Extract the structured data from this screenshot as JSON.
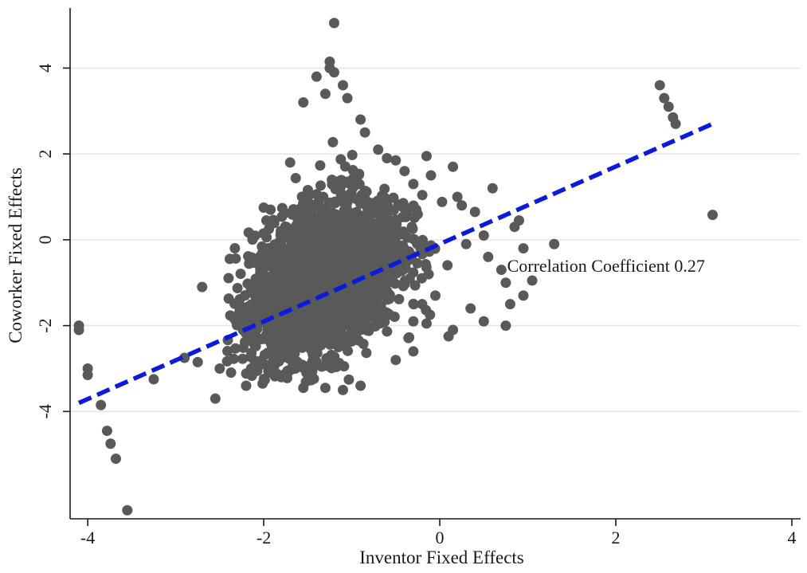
{
  "chart_data": {
    "type": "scatter",
    "title": "",
    "xlabel": "Inventor Fixed Effects",
    "ylabel": "Coworker Fixed Effects",
    "xlim": [
      -4.2,
      4.1
    ],
    "ylim": [
      -6.5,
      5.4
    ],
    "xticks": [
      -4,
      -2,
      0,
      2,
      4
    ],
    "xtick_labels": [
      "-4",
      "-2",
      "0",
      "2",
      "4"
    ],
    "yticks": [
      -4,
      -2,
      0,
      2,
      4
    ],
    "ytick_labels": [
      "-4",
      "-2",
      "0",
      "2",
      "4"
    ],
    "grid": true,
    "legend": "none",
    "colors": {
      "points": "#595959",
      "fit_line": "#0a1bdc",
      "grid": "#e6e6e6",
      "axis": "#1a1a1a"
    },
    "annotation": {
      "text": "Correlation Coefficient 0.27",
      "x": 1.2,
      "y": -0.6
    },
    "fit_line": {
      "x": [
        -4.1,
        3.1
      ],
      "y": [
        -3.8,
        2.7
      ],
      "style": "dashed"
    },
    "cluster_center": [
      -1.3,
      -0.9
    ],
    "points": [
      [
        -4.1,
        -2.0
      ],
      [
        -4.1,
        -2.1
      ],
      [
        -4.0,
        -3.0
      ],
      [
        -4.0,
        -3.15
      ],
      [
        -3.85,
        -3.85
      ],
      [
        -3.78,
        -4.45
      ],
      [
        -3.74,
        -4.75
      ],
      [
        -3.68,
        -5.1
      ],
      [
        -3.55,
        -6.3
      ],
      [
        -3.25,
        -3.25
      ],
      [
        -2.9,
        -2.75
      ],
      [
        -2.75,
        -2.85
      ],
      [
        -2.7,
        -1.1
      ],
      [
        -2.55,
        -3.7
      ],
      [
        -2.5,
        -3.0
      ],
      [
        -2.2,
        -3.4
      ],
      [
        -2.0,
        0.75
      ],
      [
        -1.7,
        1.8
      ],
      [
        -1.55,
        3.2
      ],
      [
        -1.4,
        3.8
      ],
      [
        -1.3,
        3.4
      ],
      [
        -1.25,
        4.15
      ],
      [
        -1.25,
        4.0
      ],
      [
        -1.2,
        5.05
      ],
      [
        -1.2,
        3.9
      ],
      [
        -1.1,
        3.6
      ],
      [
        -1.05,
        3.3
      ],
      [
        -0.9,
        2.8
      ],
      [
        -0.85,
        2.5
      ],
      [
        -0.7,
        2.1
      ],
      [
        -0.6,
        1.9
      ],
      [
        -0.5,
        1.85
      ],
      [
        -0.4,
        1.6
      ],
      [
        -0.3,
        1.3
      ],
      [
        -0.15,
        1.95
      ],
      [
        -0.1,
        1.5
      ],
      [
        0.15,
        1.7
      ],
      [
        0.2,
        1.0
      ],
      [
        0.25,
        0.8
      ],
      [
        0.4,
        0.65
      ],
      [
        0.5,
        0.1
      ],
      [
        0.55,
        -0.4
      ],
      [
        0.6,
        1.2
      ],
      [
        0.7,
        -0.7
      ],
      [
        0.75,
        -1.0
      ],
      [
        0.8,
        -1.5
      ],
      [
        0.85,
        0.3
      ],
      [
        0.9,
        0.45
      ],
      [
        0.95,
        -0.2
      ],
      [
        0.95,
        -1.3
      ],
      [
        1.05,
        -0.95
      ],
      [
        1.3,
        -0.1
      ],
      [
        0.75,
        -2.0
      ],
      [
        0.5,
        -1.9
      ],
      [
        0.35,
        -1.6
      ],
      [
        0.15,
        -2.1
      ],
      [
        0.1,
        -2.25
      ],
      [
        -0.3,
        -2.6
      ],
      [
        -0.5,
        -2.8
      ],
      [
        -0.9,
        -3.4
      ],
      [
        -1.1,
        -3.5
      ],
      [
        -1.3,
        -3.45
      ],
      [
        -1.55,
        -3.45
      ],
      [
        -1.8,
        -3.2
      ],
      [
        -2.1,
        -2.9
      ],
      [
        -0.15,
        -1.95
      ],
      [
        -0.2,
        -1.5
      ],
      [
        -0.05,
        -1.3
      ],
      [
        -0.3,
        -1.9
      ],
      [
        0.3,
        -0.1
      ],
      [
        2.5,
        3.6
      ],
      [
        2.55,
        3.3
      ],
      [
        2.6,
        3.1
      ],
      [
        2.65,
        2.85
      ],
      [
        2.68,
        2.7
      ],
      [
        3.1,
        0.58
      ]
    ]
  }
}
